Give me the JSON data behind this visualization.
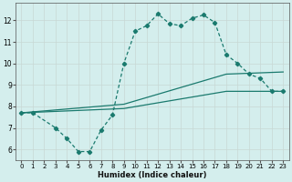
{
  "xlabel": "Humidex (Indice chaleur)",
  "xlim": [
    -0.5,
    23.5
  ],
  "ylim": [
    5.5,
    12.8
  ],
  "yticks": [
    6,
    7,
    8,
    9,
    10,
    11,
    12
  ],
  "xticks": [
    0,
    1,
    2,
    3,
    4,
    5,
    6,
    7,
    8,
    9,
    10,
    11,
    12,
    13,
    14,
    15,
    16,
    17,
    18,
    19,
    20,
    21,
    22,
    23
  ],
  "background_color": "#d4eeed",
  "grid_color": "#b8d8d8",
  "line_color": "#1a7a6e",
  "line1": {
    "x": [
      0,
      1,
      3,
      4,
      5,
      6,
      7,
      8,
      9,
      10,
      11,
      12,
      13,
      14,
      15,
      16,
      17,
      18,
      19,
      20,
      21,
      22,
      23
    ],
    "y": [
      7.7,
      7.7,
      7.0,
      6.5,
      5.9,
      5.9,
      6.9,
      7.6,
      10.0,
      11.5,
      11.75,
      12.3,
      11.85,
      11.75,
      12.1,
      12.25,
      11.9,
      10.4,
      10.0,
      9.5,
      9.3,
      8.7,
      8.7
    ]
  },
  "line2": {
    "x": [
      0,
      9,
      18,
      23
    ],
    "y": [
      7.7,
      8.1,
      9.5,
      9.6
    ]
  },
  "line3": {
    "x": [
      0,
      9,
      18,
      23
    ],
    "y": [
      7.7,
      7.9,
      8.7,
      8.7
    ]
  }
}
